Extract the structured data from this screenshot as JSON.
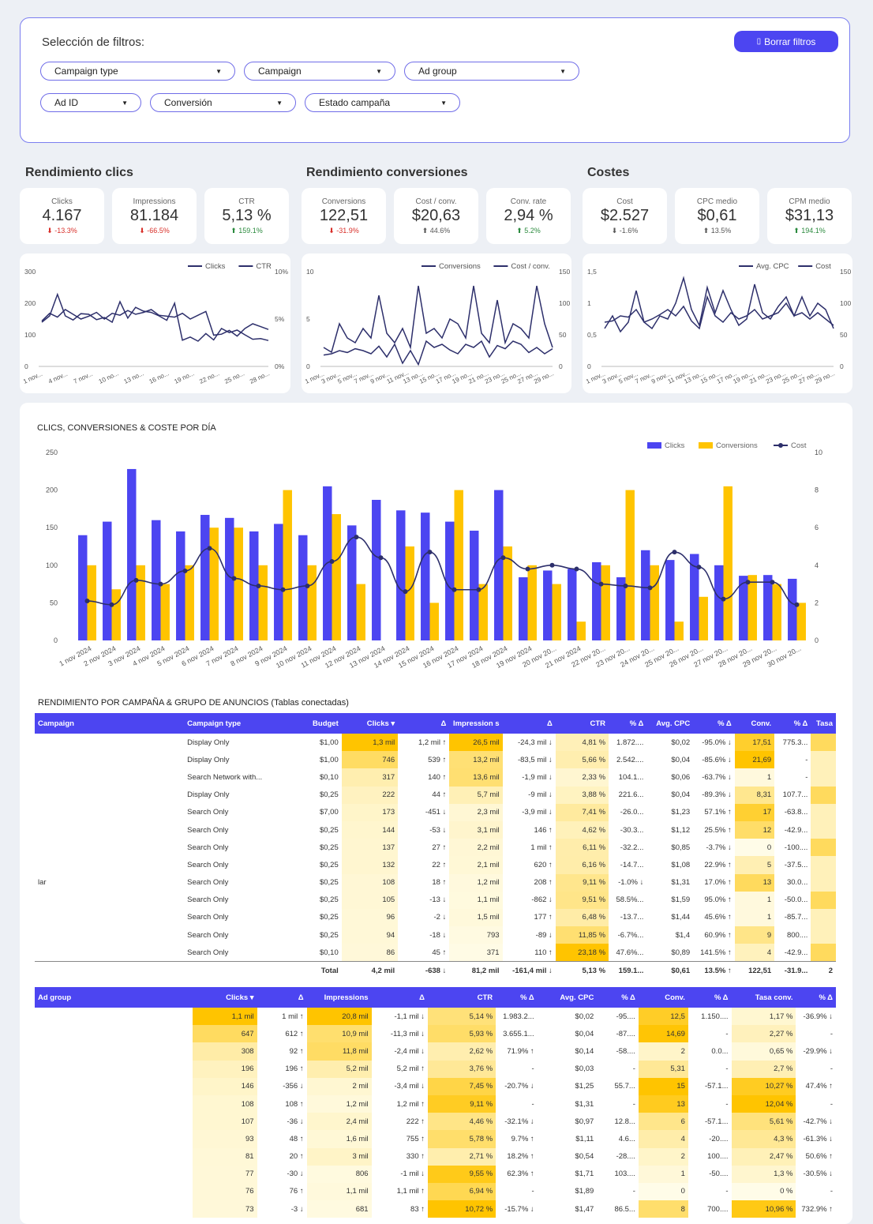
{
  "filters": {
    "title": "Selección de filtros:",
    "clear_button": "Borrar filtros",
    "dropdowns": [
      "Campaign type",
      "Campaign",
      "Ad group",
      "Ad ID",
      "Conversión",
      "Estado campaña"
    ]
  },
  "sections": {
    "clicks": "Rendimiento clics",
    "conversions": "Rendimiento conversiones",
    "costs": "Costes"
  },
  "kpis": [
    {
      "label": "Clicks",
      "value": "4.167",
      "change": "-13.3%",
      "dir": "down"
    },
    {
      "label": "Impressions",
      "value": "81.184",
      "change": "-66.5%",
      "dir": "down"
    },
    {
      "label": "CTR",
      "value": "5,13 %",
      "change": "159.1%",
      "dir": "up"
    },
    {
      "label": "Conversions",
      "value": "122,51",
      "change": "-31.9%",
      "dir": "down"
    },
    {
      "label": "Cost / conv.",
      "value": "$20,63",
      "change": "44.6%",
      "dir": "up-neutral"
    },
    {
      "label": "Conv. rate",
      "value": "2,94 %",
      "change": "5.2%",
      "dir": "up"
    },
    {
      "label": "Cost",
      "value": "$2.527",
      "change": "-1.6%",
      "dir": "down-neutral"
    },
    {
      "label": "CPC medio",
      "value": "$0,61",
      "change": "13.5%",
      "dir": "up-neutral"
    },
    {
      "label": "CPM medio",
      "value": "$31,13",
      "change": "194.1%",
      "dir": "up"
    }
  ],
  "colors": {
    "accent": "#4c45f1",
    "yellow": "#ffc400",
    "line": "#2d2f6b",
    "pos": "#2b8a3e",
    "neg": "#d9302a"
  },
  "chart_data": [
    {
      "type": "line",
      "legend": [
        "Clicks",
        "CTR"
      ],
      "y_left_ticks": [
        "0",
        "100",
        "200",
        "300"
      ],
      "y_right_ticks": [
        "0%",
        "5%",
        "10%"
      ],
      "x_labels": [
        "1 nov...",
        "4 nov...",
        "7 nov...",
        "10 no...",
        "13 no...",
        "16 no...",
        "19 no...",
        "22 no...",
        "25 no...",
        "28 no..."
      ],
      "series": [
        {
          "name": "Clicks",
          "axis": "left",
          "ylim": [
            0,
            300
          ],
          "values": [
            140,
            160,
            228,
            160,
            147,
            167,
            165,
            148,
            155,
            140,
            205,
            153,
            187,
            175,
            171,
            160,
            146,
            200,
            83,
            93,
            80,
            104,
            84,
            120,
            107,
            115,
            100,
            86,
            88,
            82
          ]
        },
        {
          "name": "CTR",
          "axis": "right",
          "ylim": [
            0,
            10
          ],
          "values": [
            4.8,
            5.6,
            5.2,
            6.0,
            5.5,
            5.0,
            5.3,
            5.7,
            5.0,
            5.6,
            5.4,
            5.9,
            5.5,
            5.7,
            6.0,
            5.4,
            5.3,
            5.2,
            5.6,
            5.0,
            5.4,
            5.8,
            3.3,
            3.4,
            3.8,
            3.2,
            4.0,
            4.5,
            4.2,
            3.9
          ]
        }
      ]
    },
    {
      "type": "line",
      "legend": [
        "Conversions",
        "Cost / conv."
      ],
      "y_left_ticks": [
        "0",
        "5",
        "10"
      ],
      "y_right_ticks": [
        "0",
        "50",
        "100",
        "150"
      ],
      "x_labels": [
        "1 nov...",
        "3 nov...",
        "5 nov...",
        "7 nov...",
        "9 nov...",
        "11 nov...",
        "13 no...",
        "15 no...",
        "17 no...",
        "19 no...",
        "21 no...",
        "23 no...",
        "25 no...",
        "27 no...",
        "29 no..."
      ],
      "series": [
        {
          "name": "Conversions",
          "axis": "left",
          "ylim": [
            0,
            10
          ],
          "values": [
            2,
            1.5,
            4.5,
            3,
            2.5,
            4,
            3,
            7.5,
            3.5,
            2.5,
            4,
            2,
            8.5,
            3.5,
            4,
            3,
            5,
            4.5,
            3,
            8.5,
            3.5,
            2.5,
            7,
            2.5,
            4.5,
            4,
            3,
            8.5,
            4.5,
            2
          ]
        },
        {
          "name": "Cost / conv.",
          "axis": "right",
          "ylim": [
            0,
            150
          ],
          "values": [
            18,
            20,
            25,
            22,
            28,
            25,
            20,
            32,
            15,
            35,
            5,
            25,
            3,
            40,
            30,
            35,
            26,
            20,
            35,
            30,
            40,
            15,
            33,
            28,
            40,
            35,
            22,
            30,
            20,
            28
          ]
        }
      ]
    },
    {
      "type": "line",
      "legend": [
        "Avg. CPC",
        "Cost"
      ],
      "y_left_ticks": [
        "0",
        "0,5",
        "1",
        "1,5"
      ],
      "y_right_ticks": [
        "0",
        "50",
        "100",
        "150"
      ],
      "x_labels": [
        "1 nov...",
        "3 nov...",
        "5 nov...",
        "7 nov...",
        "9 nov...",
        "11 nov...",
        "13 no...",
        "15 no...",
        "17 no...",
        "19 no...",
        "21 no...",
        "23 no...",
        "25 no...",
        "27 no...",
        "29 no..."
      ],
      "series": [
        {
          "name": "Avg. CPC",
          "axis": "left",
          "ylim": [
            0,
            1.5
          ],
          "values": [
            0.6,
            0.8,
            0.55,
            0.7,
            1.2,
            0.7,
            0.6,
            0.8,
            0.75,
            1.0,
            1.4,
            0.9,
            0.65,
            1.25,
            0.85,
            1.2,
            0.9,
            0.65,
            0.75,
            1.3,
            0.85,
            0.75,
            0.95,
            1.1,
            0.8,
            1.1,
            0.8,
            1.0,
            0.9,
            0.6
          ]
        },
        {
          "name": "Cost",
          "axis": "right",
          "ylim": [
            0,
            150
          ],
          "values": [
            70,
            72,
            80,
            78,
            90,
            70,
            75,
            82,
            90,
            80,
            95,
            72,
            60,
            110,
            80,
            70,
            85,
            75,
            80,
            90,
            75,
            80,
            85,
            100,
            80,
            85,
            75,
            85,
            75,
            65
          ]
        }
      ]
    },
    {
      "type": "bar",
      "title": "CLICS, CONVERSIONES & COSTE POR DÍA",
      "legend": [
        "Clicks",
        "Conversions",
        "Cost"
      ],
      "y_left_ticks": [
        "0",
        "50",
        "100",
        "150",
        "200",
        "250"
      ],
      "y_right_ticks": [
        "0",
        "2",
        "4",
        "6",
        "8",
        "10"
      ],
      "ylim": [
        0,
        250
      ],
      "y2lim": [
        0,
        10
      ],
      "categories": [
        "1 nov 2024",
        "2 nov 2024",
        "3 nov 2024",
        "4 nov 2024",
        "5 nov 2024",
        "6 nov 2024",
        "7 nov 2024",
        "8 nov 2024",
        "9 nov 2024",
        "10 nov 2024",
        "11 nov 2024",
        "12 nov 2024",
        "13 nov 2024",
        "14 nov 2024",
        "15 nov 2024",
        "16 nov 2024",
        "17 nov 2024",
        "18 nov 2024",
        "19 nov 2024",
        "20 nov 20...",
        "21 nov 2024",
        "22 nov 20...",
        "23 nov 20...",
        "24 nov 20...",
        "25 nov 20...",
        "26 nov 20...",
        "27 nov 20...",
        "28 nov 20...",
        "29 nov 20...",
        "30 nov 20..."
      ],
      "series": [
        {
          "name": "Clicks",
          "values": [
            140,
            158,
            228,
            160,
            145,
            167,
            163,
            145,
            155,
            140,
            205,
            153,
            187,
            173,
            170,
            158,
            146,
            200,
            84,
            93,
            95,
            104,
            84,
            120,
            107,
            115,
            100,
            86,
            87,
            82
          ]
        },
        {
          "name": "Conversions",
          "values": [
            100,
            68,
            100,
            75,
            100,
            150,
            150,
            100,
            200,
            100,
            168,
            75,
            0,
            125,
            50,
            200,
            75,
            125,
            100,
            75,
            25,
            100,
            200,
            100,
            25,
            58,
            205,
            87,
            75,
            50
          ]
        },
        {
          "name": "Cost",
          "values": [
            2.1,
            1.9,
            3.2,
            3.0,
            3.7,
            4.9,
            3.3,
            2.9,
            2.7,
            2.9,
            4.2,
            5.5,
            4.4,
            2.6,
            4.7,
            2.7,
            2.7,
            4.4,
            3.8,
            4.0,
            3.8,
            3.0,
            2.9,
            2.8,
            4.7,
            3.9,
            2.2,
            3.1,
            3.1,
            1.9
          ]
        }
      ]
    }
  ],
  "table1": {
    "title": "RENDIMIENTO POR CAMPAÑA & GRUPO DE ANUNCIOS (Tablas conectadas)",
    "headers": [
      "Campaign",
      "Campaign type",
      "Budget",
      "Clicks ▾",
      "Δ",
      "Impression s",
      "Δ",
      "CTR",
      "% Δ",
      "Avg. CPC",
      "% Δ",
      "Conv.",
      "% Δ",
      "Tasa"
    ],
    "rows": [
      [
        "",
        "Display Only",
        "$1,00",
        "1,3 mil",
        "1,2 mil ↑",
        "26,5 mil",
        "-24,3 mil ↓",
        "4,81 %",
        "1.872....",
        "$0,02",
        "-95.0% ↓",
        "17,51",
        "775.3...",
        ""
      ],
      [
        "",
        "Display Only",
        "$1,00",
        "746",
        "539 ↑",
        "13,2 mil",
        "-83,5 mil ↓",
        "5,66 %",
        "2.542....",
        "$0,04",
        "-85.6% ↓",
        "21,69",
        "-",
        ""
      ],
      [
        "",
        "Search Network with...",
        "$0,10",
        "317",
        "140 ↑",
        "13,6 mil",
        "-1,9 mil ↓",
        "2,33 %",
        "104.1...",
        "$0,06",
        "-63.7% ↓",
        "1",
        "-",
        ""
      ],
      [
        "",
        "Display Only",
        "$0,25",
        "222",
        "44 ↑",
        "5,7 mil",
        "-9 mil ↓",
        "3,88 %",
        "221.6...",
        "$0,04",
        "-89.3% ↓",
        "8,31",
        "107.7...",
        ""
      ],
      [
        "",
        "Search Only",
        "$7,00",
        "173",
        "-451 ↓",
        "2,3 mil",
        "-3,9 mil ↓",
        "7,41 %",
        "-26.0...",
        "$1,23",
        "57.1% ↑",
        "17",
        "-63.8...",
        ""
      ],
      [
        "",
        "Search Only",
        "$0,25",
        "144",
        "-53 ↓",
        "3,1 mil",
        "146 ↑",
        "4,62 %",
        "-30.3...",
        "$1,12",
        "25.5% ↑",
        "12",
        "-42.9...",
        ""
      ],
      [
        "",
        "Search Only",
        "$0,25",
        "137",
        "27 ↑",
        "2,2 mil",
        "1 mil ↑",
        "6,11 %",
        "-32.2...",
        "$0,85",
        "-3.7% ↓",
        "0",
        "-100....",
        ""
      ],
      [
        "",
        "Search Only",
        "$0,25",
        "132",
        "22 ↑",
        "2,1 mil",
        "620 ↑",
        "6,16 %",
        "-14.7...",
        "$1,08",
        "22.9% ↑",
        "5",
        "-37.5...",
        ""
      ],
      [
        "lar",
        "Search Only",
        "$0,25",
        "108",
        "18 ↑",
        "1,2 mil",
        "208 ↑",
        "9,11 %",
        "-1.0% ↓",
        "$1,31",
        "17.0% ↑",
        "13",
        "30.0...",
        ""
      ],
      [
        "",
        "Search Only",
        "$0,25",
        "105",
        "-13 ↓",
        "1,1 mil",
        "-862 ↓",
        "9,51 %",
        "58.5%...",
        "$1,59",
        "95.0% ↑",
        "1",
        "-50.0...",
        ""
      ],
      [
        "",
        "Search Only",
        "$0,25",
        "96",
        "-2 ↓",
        "1,5 mil",
        "177 ↑",
        "6,48 %",
        "-13.7...",
        "$1,44",
        "45.6% ↑",
        "1",
        "-85.7...",
        ""
      ],
      [
        "",
        "Search Only",
        "$0,25",
        "94",
        "-18 ↓",
        "793",
        "-89 ↓",
        "11,85 %",
        "-6.7%...",
        "$1,4",
        "60.9% ↑",
        "9",
        "800....",
        ""
      ],
      [
        "",
        "Search Only",
        "$0,10",
        "86",
        "45 ↑",
        "371",
        "110 ↑",
        "23,18 %",
        "47.6%...",
        "$0,89",
        "141.5% ↑",
        "4",
        "-42.9...",
        ""
      ]
    ],
    "total": [
      "",
      "",
      "Total",
      "4,2 mil",
      "-638 ↓",
      "81,2 mil",
      "-161,4 mil ↓",
      "5,13 %",
      "159.1...",
      "$0,61",
      "13.5% ↑",
      "122,51",
      "-31.9...",
      "2"
    ]
  },
  "table2": {
    "headers": [
      "Ad group",
      "Clicks ▾",
      "Δ",
      "Impressions",
      "Δ",
      "CTR",
      "% Δ",
      "Avg. CPC",
      "% Δ",
      "Conv.",
      "% Δ",
      "Tasa conv.",
      "% Δ"
    ],
    "rows": [
      [
        "",
        "1,1 mil",
        "1 mil ↑",
        "20,8 mil",
        "-1,1 mil ↓",
        "5,14 %",
        "1.983.2...",
        "$0,02",
        "-95....",
        "12,5",
        "1.150....",
        "1,17 %",
        "-36.9% ↓"
      ],
      [
        "",
        "647",
        "612 ↑",
        "10,9 mil",
        "-11,3 mil ↓",
        "5,93 %",
        "3.655.1...",
        "$0,04",
        "-87....",
        "14,69",
        "-",
        "2,27 %",
        "-"
      ],
      [
        "",
        "308",
        "92 ↑",
        "11,8 mil",
        "-2,4 mil ↓",
        "2,62 %",
        "71.9% ↑",
        "$0,14",
        "-58....",
        "2",
        "0.0...",
        "0,65 %",
        "-29.9% ↓"
      ],
      [
        "",
        "196",
        "196 ↑",
        "5,2 mil",
        "5,2 mil ↑",
        "3,76 %",
        "-",
        "$0,03",
        "-",
        "5,31",
        "-",
        "2,7 %",
        "-"
      ],
      [
        "",
        "146",
        "-356 ↓",
        "2 mil",
        "-3,4 mil ↓",
        "7,45 %",
        "-20.7% ↓",
        "$1,25",
        "55.7...",
        "15",
        "-57.1...",
        "10,27 %",
        "47.4% ↑"
      ],
      [
        "",
        "108",
        "108 ↑",
        "1,2 mil",
        "1,2 mil ↑",
        "9,11 %",
        "-",
        "$1,31",
        "-",
        "13",
        "-",
        "12,04 %",
        "-"
      ],
      [
        "",
        "107",
        "-36 ↓",
        "2,4 mil",
        "222 ↑",
        "4,46 %",
        "-32.1% ↓",
        "$0,97",
        "12.8...",
        "6",
        "-57.1...",
        "5,61 %",
        "-42.7% ↓"
      ],
      [
        "",
        "93",
        "48 ↑",
        "1,6 mil",
        "755 ↑",
        "5,78 %",
        "9.7% ↑",
        "$1,11",
        "4.6...",
        "4",
        "-20....",
        "4,3 %",
        "-61.3% ↓"
      ],
      [
        "",
        "81",
        "20 ↑",
        "3 mil",
        "330 ↑",
        "2,71 %",
        "18.2% ↑",
        "$0,54",
        "-28....",
        "2",
        "100....",
        "2,47 %",
        "50.6% ↑"
      ],
      [
        "",
        "77",
        "-30 ↓",
        "806",
        "-1 mil ↓",
        "9,55 %",
        "62.3% ↑",
        "$1,71",
        "103....",
        "1",
        "-50....",
        "1,3 %",
        "-30.5% ↓"
      ],
      [
        "",
        "76",
        "76 ↑",
        "1,1 mil",
        "1,1 mil ↑",
        "6,94 %",
        "-",
        "$1,89",
        "-",
        "0",
        "-",
        "0 %",
        "-"
      ],
      [
        "",
        "73",
        "-3 ↓",
        "681",
        "83 ↑",
        "10,72 %",
        "-15.7% ↓",
        "$1,47",
        "86.5...",
        "8",
        "700....",
        "10,96 %",
        "732.9% ↑"
      ]
    ]
  }
}
